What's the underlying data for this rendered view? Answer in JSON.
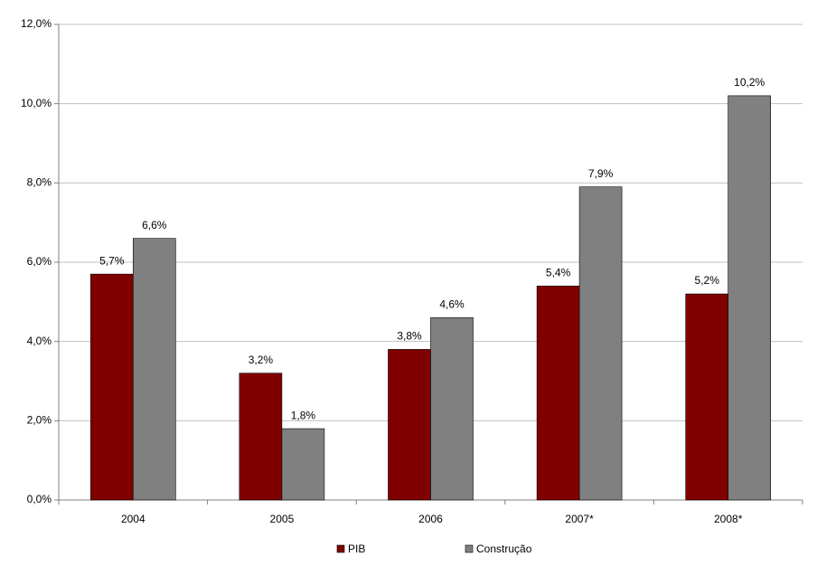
{
  "chart_data": {
    "type": "bar",
    "categories": [
      "2004",
      "2005",
      "2006",
      "2007*",
      "2008*"
    ],
    "series": [
      {
        "name": "PIB",
        "color": "#800000",
        "values": [
          5.7,
          3.2,
          3.8,
          5.4,
          5.2
        ],
        "value_labels": [
          "5,7%",
          "3,2%",
          "3,8%",
          "5,4%",
          "5,2%"
        ]
      },
      {
        "name": "Construção",
        "color": "#808080",
        "values": [
          6.6,
          1.8,
          4.6,
          7.9,
          10.2
        ],
        "value_labels": [
          "6,6%",
          "1,8%",
          "4,6%",
          "7,9%",
          "10,2%"
        ]
      }
    ],
    "ylim": [
      0,
      12
    ],
    "yticks": [
      {
        "value": 0,
        "label": "0,0%"
      },
      {
        "value": 2,
        "label": "2,0%"
      },
      {
        "value": 4,
        "label": "4,0%"
      },
      {
        "value": 6,
        "label": "6,0%"
      },
      {
        "value": 8,
        "label": "8,0%"
      },
      {
        "value": 10,
        "label": "10,0%"
      },
      {
        "value": 12,
        "label": "12,0%"
      }
    ],
    "grid": true,
    "legend": "bottom"
  }
}
